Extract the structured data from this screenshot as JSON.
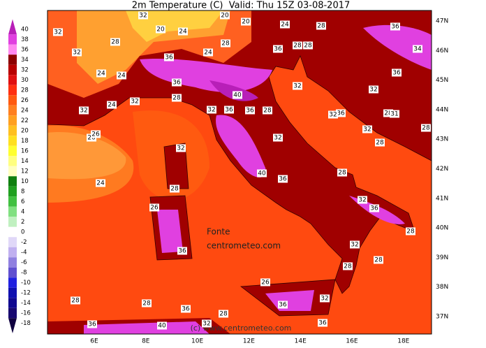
{
  "header": {
    "title": "2m Temperature (C)  Valid: Thu 15Z 03-08-2017"
  },
  "colorbar": {
    "levels": [
      {
        "value": 40,
        "color": "#b81fb8"
      },
      {
        "value": 38,
        "color": "#e040e0"
      },
      {
        "value": 36,
        "color": "#ff88f0"
      },
      {
        "value": 34,
        "color": "#8c0000"
      },
      {
        "value": 32,
        "color": "#b80000"
      },
      {
        "value": 30,
        "color": "#e01010"
      },
      {
        "value": 28,
        "color": "#ff3010"
      },
      {
        "value": 26,
        "color": "#ff5a10"
      },
      {
        "value": 24,
        "color": "#ff8020"
      },
      {
        "value": 22,
        "color": "#ffa020"
      },
      {
        "value": 20,
        "color": "#ffc020"
      },
      {
        "value": 18,
        "color": "#ffe020"
      },
      {
        "value": 16,
        "color": "#ffff30"
      },
      {
        "value": 14,
        "color": "#ffff80"
      },
      {
        "value": 12,
        "color": "#ffffc0"
      },
      {
        "value": 10,
        "color": "#108010"
      },
      {
        "value": 8,
        "color": "#20a020"
      },
      {
        "value": 6,
        "color": "#40c040"
      },
      {
        "value": 4,
        "color": "#80e080"
      },
      {
        "value": 2,
        "color": "#c0f0c0"
      },
      {
        "value": 0,
        "color": "#ffffff"
      },
      {
        "value": -2,
        "color": "#e0d8f8"
      },
      {
        "value": -4,
        "color": "#c0b0f0"
      },
      {
        "value": -6,
        "color": "#9080e0"
      },
      {
        "value": -8,
        "color": "#6050d0"
      },
      {
        "value": -10,
        "color": "#2020e0"
      },
      {
        "value": -12,
        "color": "#1010b0"
      },
      {
        "value": -14,
        "color": "#100890"
      },
      {
        "value": -16,
        "color": "#180870"
      },
      {
        "value": -18,
        "color": "#100040"
      }
    ]
  },
  "lat_labels": [
    "47N",
    "46N",
    "45N",
    "44N",
    "43N",
    "42N",
    "41N",
    "40N",
    "39N",
    "38N",
    "37N"
  ],
  "lon_labels": [
    "6E",
    "8E",
    "10E",
    "12E",
    "14E",
    "16E",
    "18E"
  ],
  "contour_labels": [
    "32",
    "32",
    "28",
    "20",
    "24",
    "32",
    "20",
    "20",
    "24",
    "28",
    "36",
    "24",
    "28",
    "36",
    "36",
    "28",
    "28",
    "34",
    "36",
    "24",
    "24",
    "36",
    "28",
    "32",
    "24",
    "32",
    "40",
    "32",
    "32",
    "32",
    "36",
    "36",
    "28",
    "36",
    "32",
    "28",
    "31",
    "28",
    "32",
    "28",
    "26",
    "26",
    "32",
    "32",
    "24",
    "40",
    "36",
    "28",
    "28",
    "32",
    "36",
    "26",
    "28",
    "36",
    "32",
    "28",
    "28",
    "26",
    "36",
    "32",
    "28",
    "28",
    "36",
    "28",
    "36",
    "40",
    "32",
    "36"
  ],
  "source": {
    "line1": "Fonte",
    "line2": "centrometeo.com"
  },
  "watermark": "(c) www.centrometeo.com"
}
